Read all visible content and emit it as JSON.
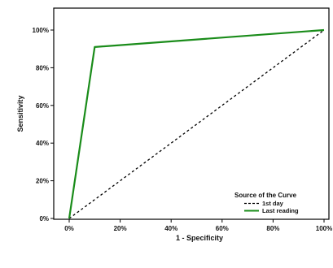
{
  "chart_data": {
    "type": "line",
    "xlabel": "1 - Specificity",
    "ylabel": "Sensitivity",
    "xlim": [
      0,
      100
    ],
    "ylim": [
      0,
      100
    ],
    "x_ticks": [
      "0%",
      "20%",
      "40%",
      "60%",
      "80%",
      "100%"
    ],
    "y_ticks": [
      "0%",
      "20%",
      "40%",
      "60%",
      "80%",
      "100%"
    ],
    "tick_values": [
      0,
      20,
      40,
      60,
      80,
      100
    ],
    "grid": false,
    "legend": {
      "title": "Source of the Curve",
      "placement": "bottom-right"
    },
    "series": [
      {
        "name": "1st day",
        "style": "dashed",
        "color": "#000000",
        "x": [
          0,
          100
        ],
        "y": [
          0,
          100
        ]
      },
      {
        "name": "Last reading",
        "style": "solid",
        "color": "#1a8c1a",
        "x": [
          0,
          10,
          100
        ],
        "y": [
          0,
          91,
          100
        ]
      }
    ]
  }
}
